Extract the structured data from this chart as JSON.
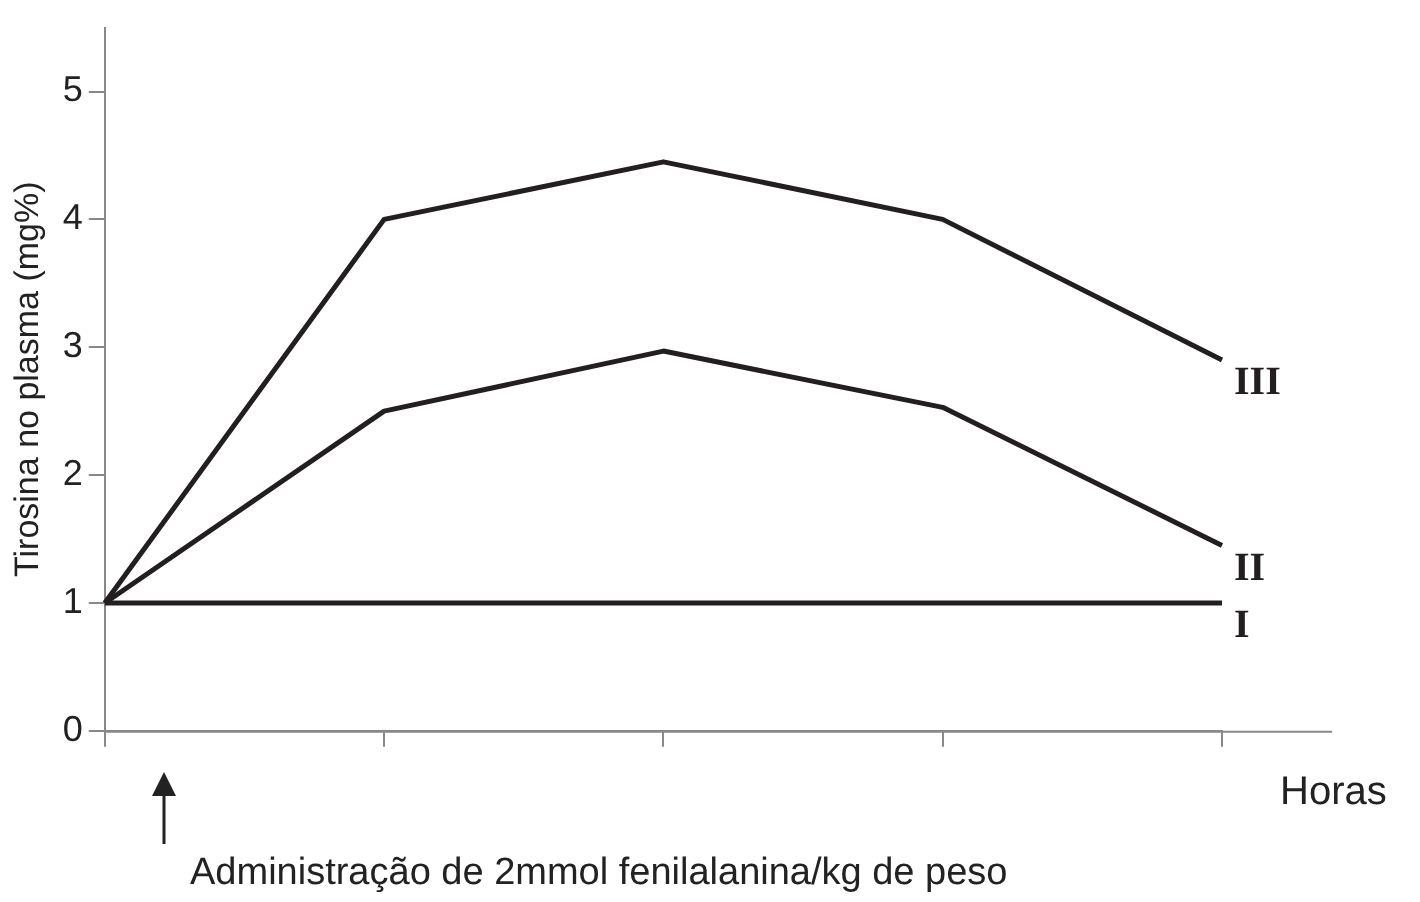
{
  "chart_data": {
    "type": "line",
    "ylabel": "Tirosina no plasma (mg%)",
    "xlabel": "Horas",
    "annotations": [
      "Administração de 2mmol fenilalanina/kg de peso"
    ],
    "categories": [
      null,
      null,
      null,
      null,
      null
    ],
    "ylim": [
      0,
      5.5
    ],
    "yticks": [
      0,
      1,
      2,
      3,
      4,
      5
    ],
    "grid": false,
    "legend": false,
    "marker": "none",
    "line_style": "solid",
    "series": [
      {
        "name": "I",
        "color": "#231f20",
        "values": [
          1,
          1,
          1,
          1,
          1
        ]
      },
      {
        "name": "II",
        "color": "#231f20",
        "values": [
          1,
          2.5,
          2.97,
          2.53,
          1.45
        ]
      },
      {
        "name": "III",
        "color": "#231f20",
        "values": [
          1,
          4,
          4.45,
          4,
          2.9
        ]
      }
    ]
  }
}
